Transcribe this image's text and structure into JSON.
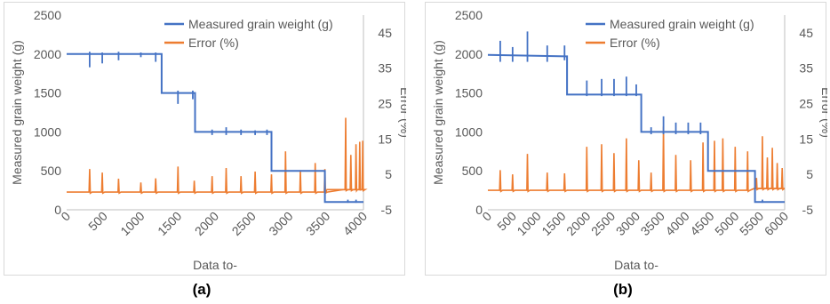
{
  "chart_data": [
    {
      "panel_label": "(a)",
      "type": "line",
      "xlabel": "Data to-",
      "ylabel": "Measured grain weight (g)",
      "y2label": "Error (%)",
      "xlim": [
        0,
        4000
      ],
      "xticks": [
        0,
        500,
        1000,
        1500,
        2000,
        2500,
        3000,
        3500,
        4000
      ],
      "ylim": [
        0,
        2500
      ],
      "yticks": [
        0,
        500,
        1000,
        1500,
        2000,
        2500
      ],
      "y2lim": [
        -5,
        50
      ],
      "y2ticks": [
        -5,
        5,
        15,
        25,
        35,
        45
      ],
      "legend_position": "top-right",
      "grid": false,
      "series": [
        {
          "name": "Measured grain weight (g)",
          "axis": "left",
          "color": "#4472C4",
          "x": [
            0,
            1280,
            1280,
            1730,
            1730,
            2760,
            2760,
            3480,
            3480,
            4000
          ],
          "y": [
            2000,
            2000,
            1500,
            1500,
            1000,
            1000,
            500,
            500,
            100,
            100
          ],
          "spikes": [
            {
              "x": 310,
              "up": 2030,
              "down": 1830
            },
            {
              "x": 480,
              "up": 2020,
              "down": 1880
            },
            {
              "x": 700,
              "up": 2030,
              "down": 1920
            },
            {
              "x": 1000,
              "up": 2020,
              "down": 1960
            },
            {
              "x": 1200,
              "up": 2020,
              "down": 1900
            },
            {
              "x": 1500,
              "up": 1530,
              "down": 1360
            },
            {
              "x": 1700,
              "up": 1530,
              "down": 1420
            },
            {
              "x": 1960,
              "up": 1030,
              "down": 960
            },
            {
              "x": 2150,
              "up": 1060,
              "down": 960
            },
            {
              "x": 2350,
              "up": 1030,
              "down": 960
            },
            {
              "x": 2540,
              "up": 1020,
              "down": 960
            },
            {
              "x": 2700,
              "up": 1030,
              "down": 960
            },
            {
              "x": 3790,
              "up": 130,
              "down": 90
            },
            {
              "x": 3900,
              "up": 130,
              "down": 90
            }
          ]
        },
        {
          "name": "Error (%)",
          "axis": "right",
          "color": "#ED7D31",
          "baseline": 0,
          "late_start": 3500,
          "late_level": 0.7,
          "peaks": [
            {
              "x": 310,
              "value": 6.5
            },
            {
              "x": 480,
              "value": 5.5
            },
            {
              "x": 700,
              "value": 3.8
            },
            {
              "x": 1000,
              "value": 2.7
            },
            {
              "x": 1200,
              "value": 3.9
            },
            {
              "x": 1500,
              "value": 7.2
            },
            {
              "x": 1720,
              "value": 3.2
            },
            {
              "x": 1960,
              "value": 4.5
            },
            {
              "x": 2150,
              "value": 6.8
            },
            {
              "x": 2350,
              "value": 4.5
            },
            {
              "x": 2540,
              "value": 5.8
            },
            {
              "x": 2760,
              "value": 5.0
            },
            {
              "x": 2950,
              "value": 11.5
            },
            {
              "x": 3150,
              "value": 6.2
            },
            {
              "x": 3350,
              "value": 8.2
            },
            {
              "x": 3480,
              "value": 6.5
            },
            {
              "x": 3760,
              "value": 21.0
            },
            {
              "x": 3830,
              "value": 10.5
            },
            {
              "x": 3900,
              "value": 13.5
            },
            {
              "x": 3950,
              "value": 14.2
            },
            {
              "x": 3990,
              "value": 14.5
            }
          ]
        }
      ]
    },
    {
      "panel_label": "(b)",
      "type": "line",
      "xlabel": "Data to-",
      "ylabel": "Measured grain weight (g)",
      "y2label": "Error (%)",
      "xlim": [
        0,
        6000
      ],
      "xticks": [
        0,
        500,
        1000,
        1500,
        2000,
        2500,
        3000,
        3500,
        4000,
        4500,
        5000,
        5500,
        6000
      ],
      "ylim": [
        0,
        2500
      ],
      "yticks": [
        0,
        500,
        1000,
        1500,
        2000,
        2500
      ],
      "y2lim": [
        -5,
        50
      ],
      "y2ticks": [
        -5,
        5,
        15,
        25,
        35,
        45
      ],
      "legend_position": "top-right",
      "grid": false,
      "series": [
        {
          "name": "Measured grain weight (g)",
          "axis": "left",
          "color": "#4472C4",
          "x": [
            0,
            1600,
            1600,
            3100,
            3100,
            4450,
            4450,
            5400,
            5400,
            6000
          ],
          "y": [
            1990,
            1970,
            1480,
            1480,
            1000,
            1000,
            500,
            500,
            100,
            100
          ],
          "spikes": [
            {
              "x": 250,
              "up": 2170,
              "down": 1900
            },
            {
              "x": 500,
              "up": 2090,
              "down": 1900
            },
            {
              "x": 800,
              "up": 2290,
              "down": 1900
            },
            {
              "x": 1200,
              "up": 2110,
              "down": 1900
            },
            {
              "x": 1550,
              "up": 2110,
              "down": 1920
            },
            {
              "x": 2000,
              "up": 1660,
              "down": 1460
            },
            {
              "x": 2300,
              "up": 1680,
              "down": 1460
            },
            {
              "x": 2550,
              "up": 1680,
              "down": 1460
            },
            {
              "x": 2800,
              "up": 1710,
              "down": 1460
            },
            {
              "x": 3000,
              "up": 1610,
              "down": 1460
            },
            {
              "x": 3300,
              "up": 1060,
              "down": 970
            },
            {
              "x": 3550,
              "up": 1200,
              "down": 970
            },
            {
              "x": 3800,
              "up": 1120,
              "down": 970
            },
            {
              "x": 4050,
              "up": 1120,
              "down": 970
            },
            {
              "x": 4300,
              "up": 1120,
              "down": 970
            },
            {
              "x": 5550,
              "up": 130,
              "down": 90
            }
          ]
        },
        {
          "name": "Error (%)",
          "axis": "right",
          "color": "#ED7D31",
          "baseline": 0.5,
          "late_start": 5400,
          "late_level": 1.0,
          "peaks": [
            {
              "x": 250,
              "value": 6.2
            },
            {
              "x": 500,
              "value": 5.0
            },
            {
              "x": 800,
              "value": 10.8
            },
            {
              "x": 1200,
              "value": 5.5
            },
            {
              "x": 1550,
              "value": 5.3
            },
            {
              "x": 2000,
              "value": 12.8
            },
            {
              "x": 2300,
              "value": 13.5
            },
            {
              "x": 2550,
              "value": 11.0
            },
            {
              "x": 2800,
              "value": 15.2
            },
            {
              "x": 3050,
              "value": 9.0
            },
            {
              "x": 3300,
              "value": 5.5
            },
            {
              "x": 3550,
              "value": 18.5
            },
            {
              "x": 3800,
              "value": 10.5
            },
            {
              "x": 4100,
              "value": 9.0
            },
            {
              "x": 4350,
              "value": 14.0
            },
            {
              "x": 4580,
              "value": 14.5
            },
            {
              "x": 4750,
              "value": 15.2
            },
            {
              "x": 5000,
              "value": 12.8
            },
            {
              "x": 5250,
              "value": 11.5
            },
            {
              "x": 5430,
              "value": 4.0
            },
            {
              "x": 5550,
              "value": 15.8
            },
            {
              "x": 5650,
              "value": 9.8
            },
            {
              "x": 5750,
              "value": 12.5
            },
            {
              "x": 5850,
              "value": 8.2
            },
            {
              "x": 5950,
              "value": 6.8
            }
          ]
        }
      ]
    }
  ]
}
